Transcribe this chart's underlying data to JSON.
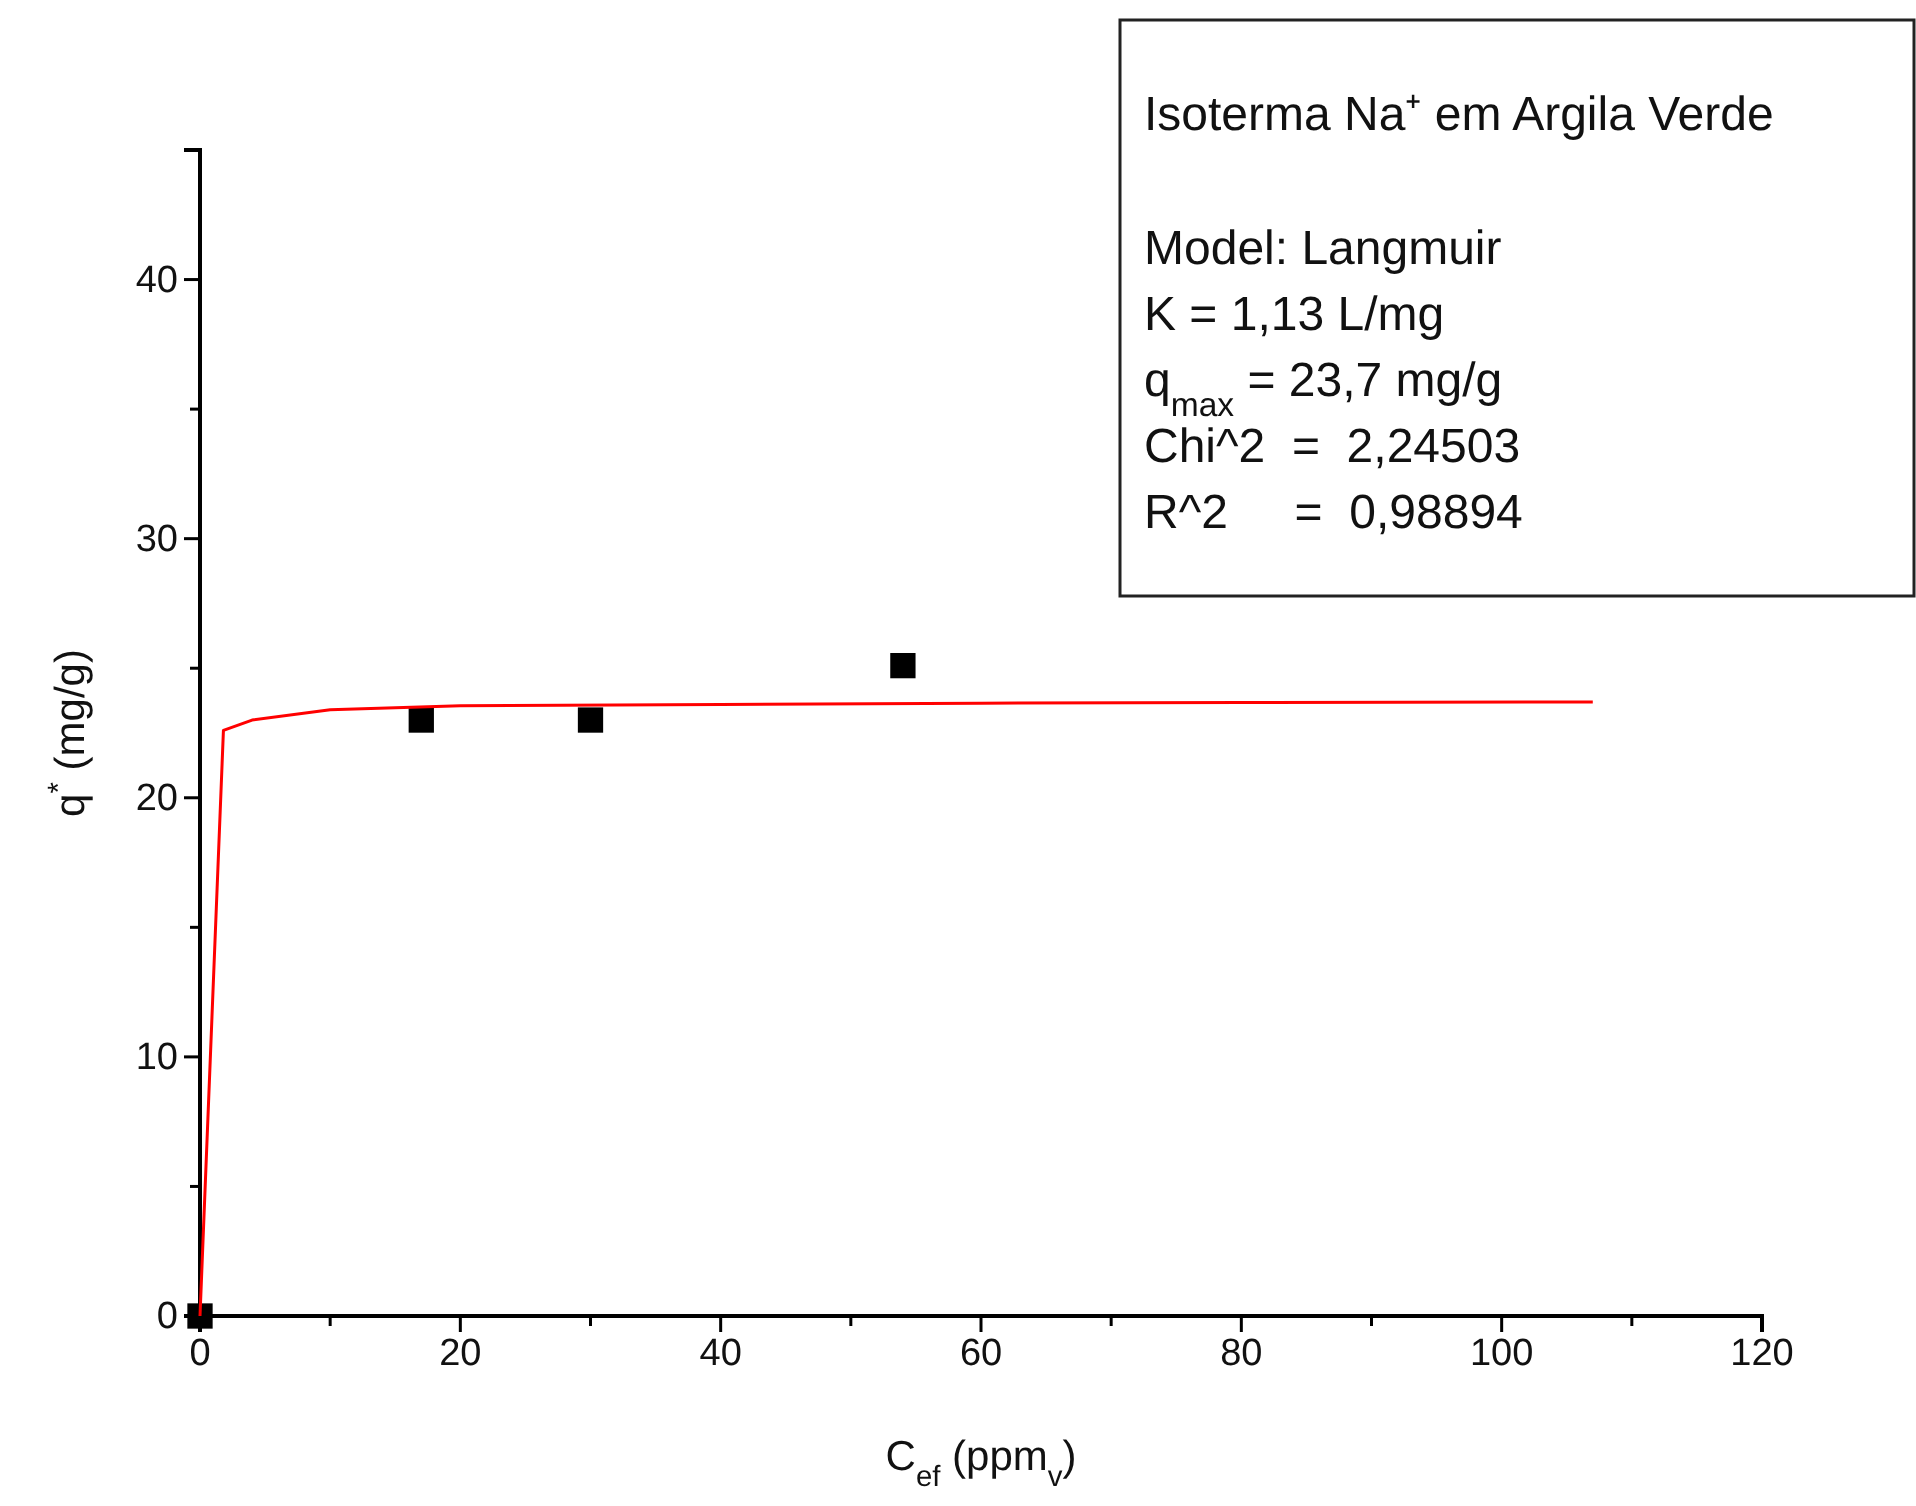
{
  "chart_data": {
    "type": "scatter",
    "xlabel": "C$_{ef}$ (ppm$_{v}$)",
    "ylabel": "q$^{*}$ (mg/g)",
    "xlim": [
      0,
      120
    ],
    "ylim": [
      0,
      45
    ],
    "xticks": [
      0,
      {
        "value": 10,
        "label": null
      },
      20,
      {
        "value": 30,
        "label": null
      },
      40,
      {
        "value": 50,
        "label": null
      },
      60,
      {
        "value": 70,
        "label": null
      },
      80,
      {
        "value": 90,
        "label": null
      },
      100,
      {
        "value": 110,
        "label": null
      },
      120
    ],
    "yticks": [
      0,
      {
        "value": 5,
        "label": null
      },
      10,
      {
        "value": 15,
        "label": null
      },
      20,
      {
        "value": 25,
        "label": null
      },
      30,
      {
        "value": 35,
        "label": null
      },
      40,
      {
        "value": 45,
        "label": null
      }
    ],
    "grid": false,
    "series": [
      {
        "color": "#000000",
        "marker": "square",
        "x": [
          0,
          17,
          30,
          54
        ],
        "values": [
          0,
          23,
          23,
          25.1
        ]
      },
      {
        "type": "line",
        "color": "#ff0000",
        "marker": "none",
        "line_style": "solid",
        "x": [
          0,
          1.8,
          4,
          10,
          20,
          40,
          60,
          80,
          107
        ],
        "values": [
          0,
          22.6,
          23.0,
          23.4,
          23.55,
          23.6,
          23.65,
          23.68,
          23.7
        ]
      }
    ],
    "annotations": [
      "Isoterma Na⁺ em Argila Verde",
      "Model: Langmuir",
      "K = 1,13 L/mg",
      "q$_{max}$ = 23,7 mg/g",
      "Chi^2  =  2,24503",
      "R^2     =  0,98894"
    ]
  }
}
